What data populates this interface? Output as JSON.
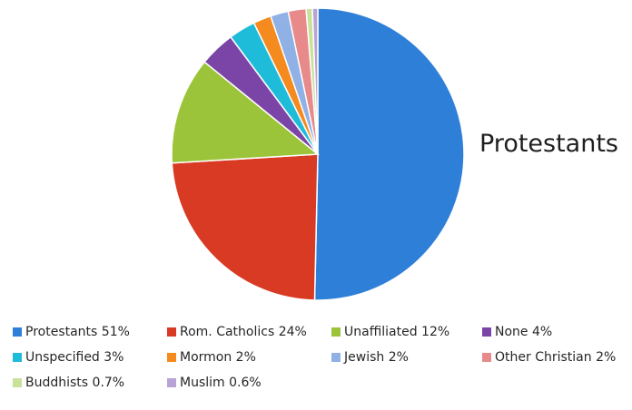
{
  "chart_data": {
    "type": "pie",
    "title": "Protestants",
    "labels": [
      "Protestants",
      "Rom. Catholics",
      "Unaffiliated",
      "None",
      "Unspecified",
      "Mormon",
      "Jewish",
      "Other Christian",
      "Buddhists",
      "Muslim"
    ],
    "values": [
      51,
      24,
      12,
      4,
      3,
      2,
      2,
      2,
      0.7,
      0.6
    ],
    "legend": [
      "Protestants 51%",
      "Rom. Catholics 24%",
      "Unaffiliated 12%",
      "None 4%",
      "Unspecified 3%",
      "Mormon 2%",
      "Jewish 2%",
      "Other Christian 2%",
      "Buddhists 0.7%",
      "Muslim 0.6%"
    ],
    "colors": [
      "#2e7fd8",
      "#d93a24",
      "#9bc43a",
      "#7a45a6",
      "#1fbcd9",
      "#f58a1f",
      "#8fb1e6",
      "#e88a8a",
      "#c9e29a",
      "#b8a2d6"
    ],
    "legend_position": "bottom",
    "start_angle": "top",
    "direction": "clockwise"
  }
}
